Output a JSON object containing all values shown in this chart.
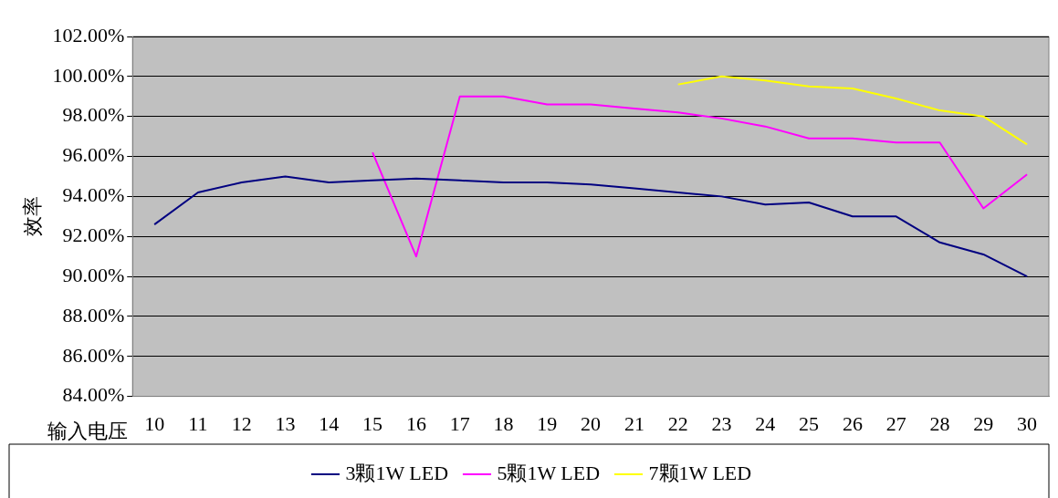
{
  "chart_data": {
    "type": "line",
    "xlabel": "输入电压",
    "ylabel": "效率",
    "categories": [
      "10",
      "11",
      "12",
      "13",
      "14",
      "15",
      "16",
      "17",
      "18",
      "19",
      "20",
      "21",
      "22",
      "23",
      "24",
      "25",
      "26",
      "27",
      "28",
      "29",
      "30"
    ],
    "ylim": [
      84,
      102
    ],
    "yticks": [
      {
        "value": 84,
        "label": "84.00%"
      },
      {
        "value": 86,
        "label": "86.00%"
      },
      {
        "value": 88,
        "label": "88.00%"
      },
      {
        "value": 90,
        "label": "90.00%"
      },
      {
        "value": 92,
        "label": "92.00%"
      },
      {
        "value": 94,
        "label": "94.00%"
      },
      {
        "value": 96,
        "label": "96.00%"
      },
      {
        "value": 98,
        "label": "98.00%"
      },
      {
        "value": 100,
        "label": "100.00%"
      },
      {
        "value": 102,
        "label": "102.00%"
      }
    ],
    "grid": "y",
    "legend": "bottom",
    "marker": "none",
    "line_style": "solid",
    "series": [
      {
        "name": "3颗1W LED",
        "color": "#000080",
        "values": [
          92.6,
          94.2,
          94.7,
          95.0,
          94.7,
          94.8,
          94.9,
          94.8,
          94.7,
          94.7,
          94.6,
          94.4,
          94.2,
          94.0,
          93.6,
          93.7,
          93.0,
          93.0,
          91.7,
          91.1,
          90.0
        ]
      },
      {
        "name": "5颗1W LED",
        "color": "#ff00ff",
        "values": [
          null,
          null,
          null,
          null,
          null,
          96.2,
          91.0,
          99.0,
          99.0,
          98.6,
          98.6,
          98.4,
          98.2,
          97.9,
          97.5,
          96.9,
          96.9,
          96.7,
          96.7,
          93.4,
          95.1
        ]
      },
      {
        "name": "7颗1W LED",
        "color": "#ffff00",
        "values": [
          null,
          null,
          null,
          null,
          null,
          null,
          null,
          null,
          null,
          null,
          null,
          null,
          99.6,
          100.0,
          99.8,
          99.5,
          99.4,
          98.9,
          98.3,
          98.0,
          96.6
        ]
      }
    ]
  }
}
